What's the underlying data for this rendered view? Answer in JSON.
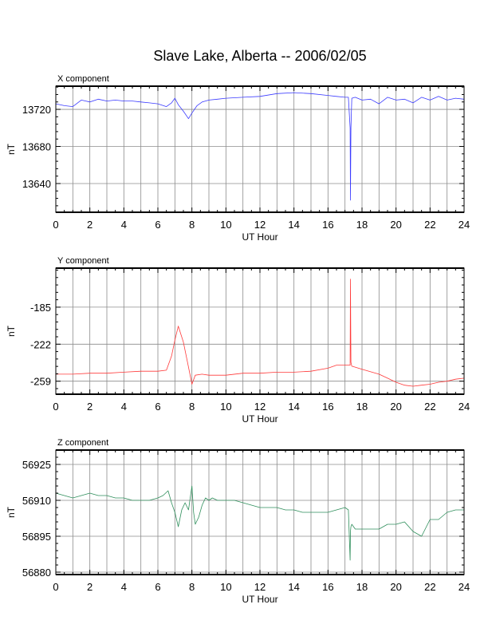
{
  "title": "Slave Lake, Alberta -- 2006/02/05",
  "chart_data": [
    {
      "type": "line",
      "panel_label": "X component",
      "xlabel": "UT Hour",
      "ylabel": "nT",
      "xlim": [
        0,
        24
      ],
      "ylim": [
        13609,
        13745
      ],
      "x_ticks": [
        0,
        2,
        4,
        6,
        8,
        10,
        12,
        14,
        16,
        18,
        20,
        22,
        24
      ],
      "y_ticks": [
        13640,
        13680,
        13720
      ],
      "grid": true,
      "color": "#3a3aff",
      "x": [
        0,
        0.5,
        1,
        1.5,
        2,
        2.5,
        3,
        3.5,
        4,
        4.5,
        5,
        5.5,
        6,
        6.5,
        6.8,
        7,
        7.2,
        7.5,
        7.8,
        8,
        8.3,
        8.6,
        9,
        9.5,
        10,
        11,
        12,
        13,
        14,
        15,
        16,
        16.5,
        17,
        17.2,
        17.3,
        17.32,
        17.35,
        17.4,
        17.6,
        18,
        18.5,
        19,
        19.5,
        20,
        20.5,
        21,
        21.5,
        22,
        22.5,
        23,
        23.5,
        24
      ],
      "y": [
        13726,
        13724,
        13723,
        13730,
        13728,
        13731,
        13729,
        13730,
        13729,
        13729,
        13728,
        13727,
        13726,
        13723,
        13727,
        13732,
        13725,
        13718,
        13710,
        13716,
        13724,
        13728,
        13730,
        13731,
        13732,
        13733,
        13734,
        13737,
        13738,
        13737,
        13735,
        13734,
        13733,
        13733,
        13700,
        13622,
        13700,
        13732,
        13733,
        13730,
        13731,
        13726,
        13733,
        13730,
        13731,
        13727,
        13733,
        13730,
        13734,
        13730,
        13732,
        13731
      ]
    },
    {
      "type": "line",
      "panel_label": "Y component",
      "xlabel": "UT Hour",
      "ylabel": "nT",
      "xlim": [
        0,
        24
      ],
      "ylim": [
        -272,
        -146
      ],
      "x_ticks": [
        0,
        2,
        4,
        6,
        8,
        10,
        12,
        14,
        16,
        18,
        20,
        22,
        24
      ],
      "y_ticks": [
        -259,
        -222,
        -185
      ],
      "grid": true,
      "color": "#ff3a3a",
      "x": [
        0,
        1,
        2,
        3,
        4,
        5,
        6,
        6.5,
        6.8,
        7,
        7.2,
        7.5,
        7.8,
        8,
        8.2,
        8.6,
        9,
        10,
        11,
        12,
        13,
        14,
        15,
        16,
        16.5,
        17,
        17.2,
        17.3,
        17.32,
        17.35,
        17.4,
        17.6,
        18,
        19,
        19.5,
        20,
        20.5,
        21,
        21.5,
        22,
        22.5,
        23,
        23.5,
        24
      ],
      "y": [
        -252,
        -252,
        -251,
        -251,
        -250,
        -249,
        -249,
        -248,
        -234,
        -218,
        -204,
        -220,
        -245,
        -262,
        -253,
        -252,
        -253,
        -253,
        -251,
        -251,
        -250,
        -250,
        -249,
        -246,
        -243,
        -243,
        -243,
        -243,
        -157,
        -240,
        -244,
        -245,
        -247,
        -252,
        -256,
        -260,
        -263,
        -264,
        -263,
        -262,
        -260,
        -259,
        -257,
        -256
      ]
    },
    {
      "type": "line",
      "panel_label": "Z component",
      "xlabel": "UT Hour",
      "ylabel": "nT",
      "xlim": [
        0,
        24
      ],
      "ylim": [
        56879,
        56931
      ],
      "x_ticks": [
        0,
        2,
        4,
        6,
        8,
        10,
        12,
        14,
        16,
        18,
        20,
        22,
        24
      ],
      "y_ticks": [
        56880,
        56895,
        56910,
        56925
      ],
      "grid": true,
      "color": "#2f8f5c",
      "x": [
        0,
        0.5,
        1,
        1.5,
        2,
        2.5,
        3,
        3.5,
        4,
        4.5,
        5,
        5.5,
        6,
        6.3,
        6.6,
        6.8,
        7,
        7.2,
        7.4,
        7.6,
        7.8,
        8,
        8.1,
        8.2,
        8.4,
        8.6,
        8.8,
        9,
        9.2,
        9.5,
        10,
        10.5,
        11,
        11.5,
        12,
        12.5,
        13,
        13.5,
        14,
        14.5,
        15,
        15.5,
        16,
        16.5,
        17,
        17.2,
        17.3,
        17.32,
        17.35,
        17.4,
        17.6,
        18,
        18.5,
        19,
        19.5,
        20,
        20.5,
        21,
        21.5,
        22,
        22.5,
        23,
        23.5,
        24
      ],
      "y": [
        56913,
        56912,
        56911,
        56912,
        56913,
        56912,
        56912,
        56911,
        56911,
        56910,
        56910,
        56910,
        56911,
        56912,
        56914,
        56909,
        56905,
        56899,
        56906,
        56909,
        56906,
        56916,
        56905,
        56900,
        56903,
        56908,
        56911,
        56910,
        56911,
        56910,
        56910,
        56910,
        56909,
        56908,
        56907,
        56907,
        56907,
        56906,
        56906,
        56905,
        56905,
        56905,
        56905,
        56906,
        56907,
        56906,
        56885,
        56897,
        56899,
        56900,
        56898,
        56898,
        56898,
        56898,
        56900,
        56900,
        56901,
        56897,
        56895,
        56902,
        56902,
        56905,
        56906,
        56906
      ]
    }
  ]
}
